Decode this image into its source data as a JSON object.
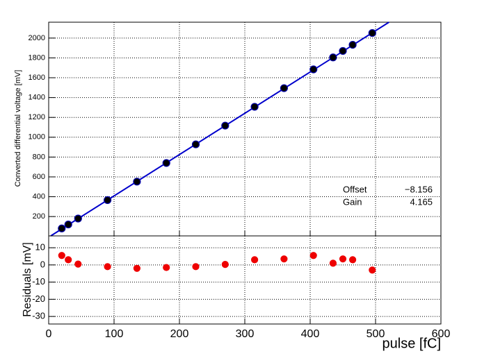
{
  "chart_data": [
    {
      "type": "scatter",
      "ylabel": "Converted differential voltage [mV]",
      "x": [
        20,
        30,
        45,
        90,
        135,
        180,
        225,
        270,
        315,
        360,
        405,
        435,
        450,
        465,
        495
      ],
      "values": [
        80,
        120,
        180,
        366,
        552,
        740,
        928,
        1117,
        1307,
        1495,
        1684,
        1805,
        1870,
        1932,
        2051
      ],
      "color": "#000000",
      "fit": {
        "labels": [
          "Offset",
          "Gain"
        ],
        "values": [
          -8.156,
          4.165
        ],
        "value_labels": [
          "−8.156",
          "4.165"
        ],
        "color": "#0000cc"
      },
      "xlim": [
        0,
        600
      ],
      "ylim": [
        5,
        2160
      ],
      "yticks": [
        200,
        400,
        600,
        800,
        1000,
        1200,
        1400,
        1600,
        1800,
        2000
      ],
      "grid": true
    },
    {
      "type": "scatter",
      "xlabel": "pulse [fC]",
      "ylabel": "Residuals [mV]",
      "x": [
        20,
        30,
        45,
        90,
        135,
        180,
        225,
        270,
        315,
        360,
        405,
        435,
        450,
        465,
        495
      ],
      "values": [
        5.5,
        3,
        0.5,
        -1,
        -2,
        -1.5,
        -1,
        0.3,
        3,
        3.5,
        5.5,
        1,
        3.5,
        3,
        -3
      ],
      "color": "#ee0000",
      "xlim": [
        0,
        600
      ],
      "xticks": [
        0,
        100,
        200,
        300,
        400,
        500,
        600
      ],
      "ylim": [
        -34.4,
        16.9
      ],
      "yticks": [
        -30,
        -20,
        -10,
        0,
        10
      ],
      "grid": true
    }
  ]
}
